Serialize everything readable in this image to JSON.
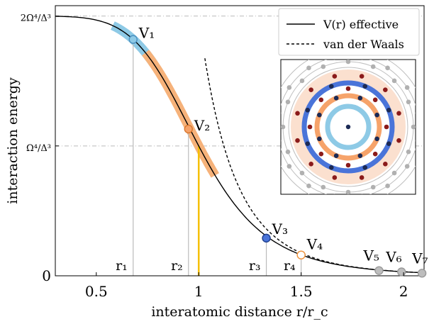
{
  "chart_data": {
    "type": "line",
    "title": "",
    "xlabel": "interatomic distance r/r_c",
    "ylabel": "interaction energy",
    "xlim": [
      0.3,
      2.1
    ],
    "ylim": [
      0,
      2.08
    ],
    "x_ticks": [
      {
        "value": 0.5,
        "label": "0.5"
      },
      {
        "value": 1.0,
        "label": "1"
      },
      {
        "value": 1.5,
        "label": "1.5"
      },
      {
        "value": 2.0,
        "label": "2"
      }
    ],
    "y_ticks": [
      {
        "value": 0,
        "label": "0"
      },
      {
        "value": 1,
        "label": "Ω⁴/Δ³"
      },
      {
        "value": 2,
        "label": "2Ω⁴/Δ³"
      }
    ],
    "grid": "dash-dot horizontal lines at 1 and 2",
    "legend": {
      "position": "top-right",
      "entries": [
        {
          "label": "V(r) effective",
          "style": "solid"
        },
        {
          "label": "van der Waals",
          "style": "dashed"
        }
      ]
    },
    "series": [
      {
        "name": "V(r) effective",
        "style": "solid",
        "color": "#000000",
        "formula": "V = 2 / (1 + (r)^6)",
        "x": [
          0.3,
          0.5,
          0.68,
          0.8,
          0.95,
          1.0,
          1.1,
          1.2,
          1.33,
          1.5,
          1.7,
          1.9,
          2.1
        ],
        "y": [
          2.0,
          1.97,
          1.82,
          1.58,
          1.13,
          1.0,
          0.72,
          0.5,
          0.29,
          0.16,
          0.08,
          0.04,
          0.02
        ]
      },
      {
        "name": "van der Waals",
        "style": "dashed",
        "color": "#000000",
        "formula": "V = 2 / r^6",
        "x": [
          1.03,
          1.1,
          1.2,
          1.33,
          1.5,
          1.7,
          1.9,
          2.1
        ],
        "y": [
          1.68,
          1.13,
          0.67,
          0.36,
          0.18,
          0.08,
          0.04,
          0.02
        ]
      }
    ],
    "highlight_bands": [
      {
        "x_from": 0.58,
        "x_to": 0.78,
        "color": "#8ecae6"
      },
      {
        "x_from": 0.74,
        "x_to": 1.08,
        "color": "#f6b27a"
      }
    ],
    "markers": [
      {
        "label": "V₁",
        "x": 0.68,
        "y": 1.82,
        "color": "#8ecae6",
        "stroke": "#4a90c0",
        "guide": "r₁"
      },
      {
        "label": "V₂",
        "x": 0.95,
        "y": 1.13,
        "color": "#f6a36a",
        "stroke": "#d9772e",
        "guide": "r₂"
      },
      {
        "label": "V₃",
        "x": 1.33,
        "y": 0.29,
        "color": "#4a74d9",
        "stroke": "#1f3f8f",
        "guide": "r₃"
      },
      {
        "label": "V₄",
        "x": 1.5,
        "y": 0.16,
        "color": "#ffffff",
        "stroke": "#f0923a",
        "guide": "r₄"
      },
      {
        "label": "V₅",
        "x": 1.88,
        "y": 0.04,
        "color": "#bdbdbd",
        "stroke": "#999999"
      },
      {
        "label": "V₆",
        "x": 1.99,
        "y": 0.03,
        "color": "#bdbdbd",
        "stroke": "#999999"
      },
      {
        "label": "V₇",
        "x": 2.09,
        "y": 0.02,
        "color": "#bdbdbd",
        "stroke": "#999999"
      }
    ],
    "guide_lines": [
      {
        "label": "r₁",
        "x": 0.68,
        "color": "#bbbbbb"
      },
      {
        "label": "r₂",
        "x": 0.95,
        "color": "#bbbbbb"
      },
      {
        "label": "",
        "x": 1.0,
        "color": "#f5c000"
      },
      {
        "label": "r₃",
        "x": 1.33,
        "color": "#bbbbbb"
      },
      {
        "label": "r₄",
        "x": 1.5,
        "color": "#bbbbbb"
      }
    ],
    "inset": {
      "position": "right, below legend",
      "rings": [
        {
          "color": "#8ecae6",
          "dots": 0
        },
        {
          "color": "#f6a36a",
          "dots": 8
        },
        {
          "color": "#4a74d9",
          "dots": 12
        },
        {
          "color": "#f9d9c4",
          "dots": 16
        },
        {
          "color": "#cccccc",
          "dots": 20
        }
      ],
      "dot_colors": {
        "navy": "#1c2a55",
        "red": "#8b1a1a",
        "gray": "#b0b0b0"
      }
    }
  }
}
